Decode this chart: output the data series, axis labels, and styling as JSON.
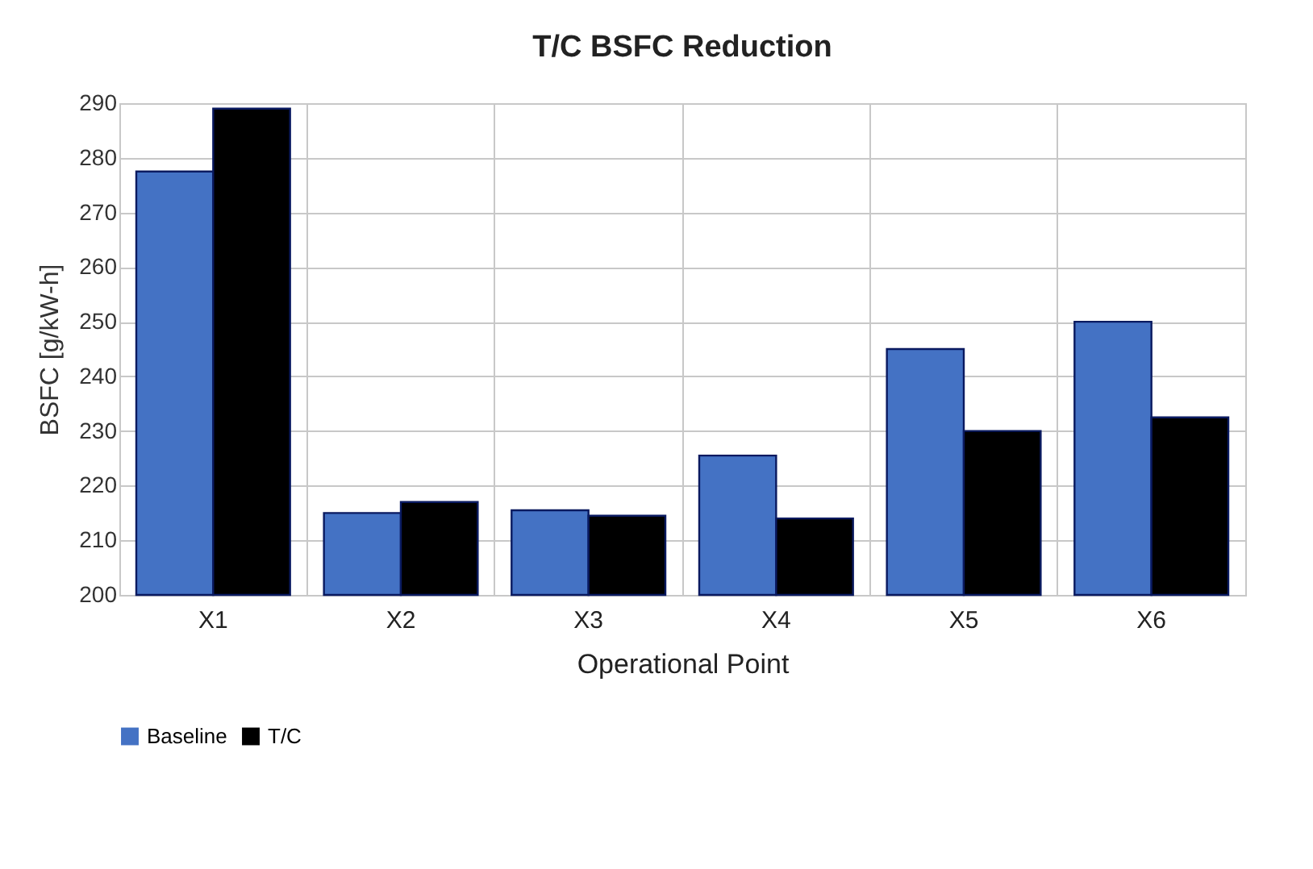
{
  "chart_data": {
    "type": "bar",
    "title": "T/C BSFC Reduction",
    "xlabel": "Operational  Point",
    "ylabel": "BSFC  [g/kW-h]",
    "categories": [
      "X1",
      "X2",
      "X3",
      "X4",
      "X5",
      "X6"
    ],
    "series": [
      {
        "name": "Baseline",
        "color": "#4472c4",
        "values": [
          277.5,
          215,
          215.5,
          225.5,
          245,
          250
        ]
      },
      {
        "name": "T/C",
        "color": "#000000",
        "values": [
          289,
          217,
          214.5,
          214,
          230,
          232.5
        ]
      }
    ],
    "ylim": [
      200,
      290
    ],
    "yticks": [
      200,
      210,
      220,
      230,
      240,
      250,
      260,
      270,
      280,
      290
    ],
    "grid": true,
    "legend": "bottom"
  }
}
